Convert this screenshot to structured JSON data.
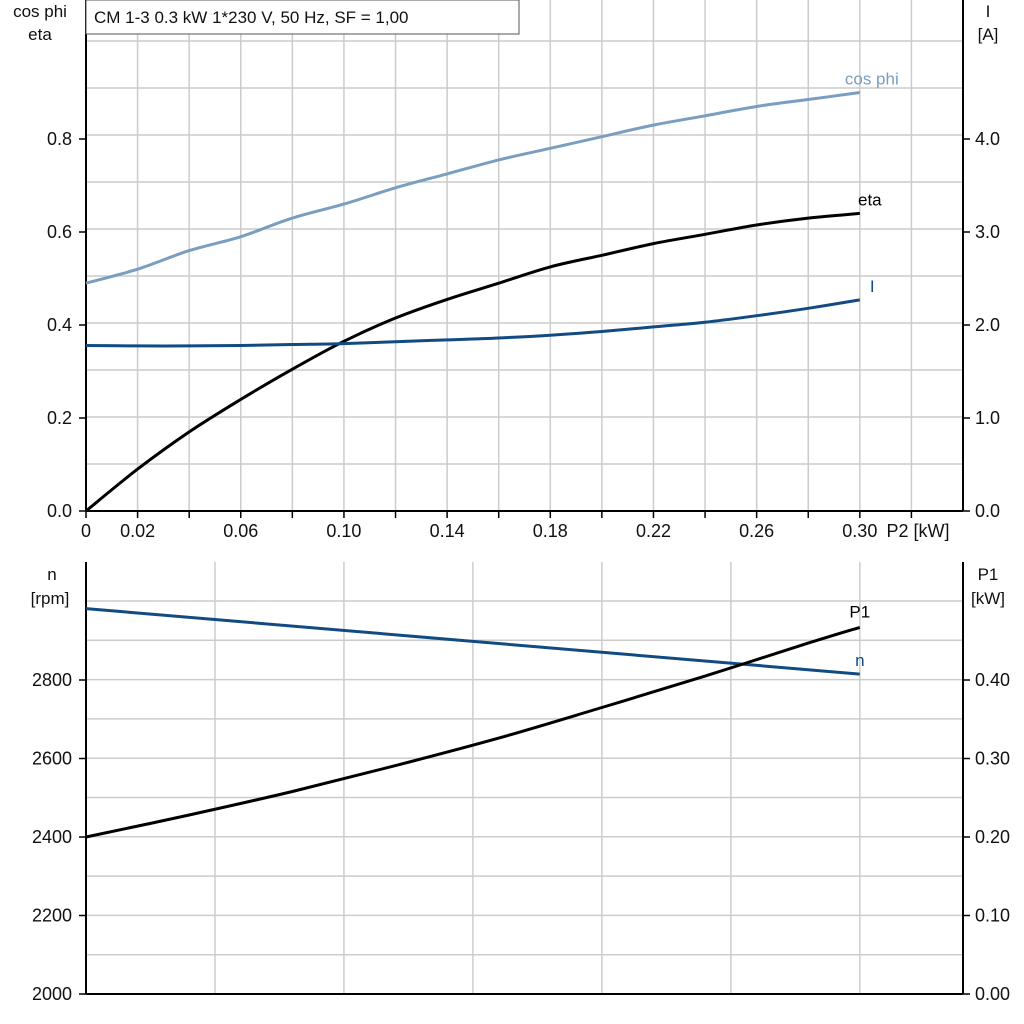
{
  "title": "CM 1-3   0.3 kW   1*230 V, 50 Hz, SF = 1,00",
  "colors": {
    "cos_phi": "#7a9ebf",
    "eta": "#000000",
    "I": "#124b82",
    "n": "#124b82",
    "P1": "#000000",
    "grid": "#cccccc"
  },
  "chart_data": [
    {
      "type": "line",
      "x_label": "P2 [kW]",
      "x_ticks": [
        "0",
        "0.02",
        "0.06",
        "0.10",
        "0.14",
        "0.18",
        "0.22",
        "0.26",
        "0.30"
      ],
      "xlim": [
        0,
        0.34
      ],
      "left_axis_label": [
        "cos phi",
        "eta"
      ],
      "left_ticks": [
        "0.0",
        "0.2",
        "0.4",
        "0.6",
        "0.8"
      ],
      "left_ylim": [
        0,
        1.0
      ],
      "right_axis_label": [
        "I",
        "[A]"
      ],
      "right_ticks": [
        "0.0",
        "1.0",
        "2.0",
        "3.0",
        "4.0"
      ],
      "right_ylim": [
        0,
        5.0
      ],
      "grid": true,
      "series": [
        {
          "name": "cos phi",
          "axis": "left",
          "color_key": "cos_phi",
          "x": [
            0,
            0.02,
            0.04,
            0.06,
            0.08,
            0.1,
            0.12,
            0.14,
            0.16,
            0.18,
            0.2,
            0.22,
            0.24,
            0.26,
            0.28,
            0.3
          ],
          "y": [
            0.49,
            0.52,
            0.56,
            0.59,
            0.63,
            0.66,
            0.695,
            0.725,
            0.755,
            0.78,
            0.805,
            0.83,
            0.85,
            0.87,
            0.885,
            0.9
          ]
        },
        {
          "name": "eta",
          "axis": "left",
          "color_key": "eta",
          "x": [
            0,
            0.02,
            0.04,
            0.06,
            0.08,
            0.1,
            0.12,
            0.14,
            0.16,
            0.18,
            0.2,
            0.22,
            0.24,
            0.26,
            0.28,
            0.3
          ],
          "y": [
            0.0,
            0.09,
            0.17,
            0.24,
            0.305,
            0.365,
            0.415,
            0.455,
            0.49,
            0.525,
            0.55,
            0.575,
            0.595,
            0.615,
            0.63,
            0.64
          ]
        },
        {
          "name": "I",
          "axis": "right",
          "color_key": "I",
          "x": [
            0,
            0.02,
            0.04,
            0.06,
            0.08,
            0.1,
            0.12,
            0.14,
            0.16,
            0.18,
            0.2,
            0.22,
            0.24,
            0.26,
            0.28,
            0.3
          ],
          "y": [
            1.78,
            1.775,
            1.775,
            1.78,
            1.79,
            1.8,
            1.82,
            1.84,
            1.86,
            1.89,
            1.93,
            1.98,
            2.03,
            2.1,
            2.18,
            2.27
          ]
        }
      ]
    },
    {
      "type": "line",
      "x_label": "",
      "xlim": [
        0,
        0.34
      ],
      "left_axis_label": [
        "n",
        "[rpm]"
      ],
      "left_ticks": [
        "2000",
        "2200",
        "2400",
        "2600",
        "2800"
      ],
      "left_ylim": [
        2000,
        3000
      ],
      "right_axis_label": [
        "P1",
        "[kW]"
      ],
      "right_ticks": [
        "0.00",
        "0.10",
        "0.20",
        "0.30",
        "0.40"
      ],
      "right_ylim": [
        0,
        0.5
      ],
      "grid": true,
      "series": [
        {
          "name": "n",
          "axis": "left",
          "color_key": "n",
          "x": [
            0,
            0.3
          ],
          "y": [
            2982,
            2815
          ]
        },
        {
          "name": "P1",
          "axis": "right",
          "color_key": "P1",
          "x": [
            0,
            0.04,
            0.08,
            0.12,
            0.16,
            0.2,
            0.24,
            0.28,
            0.3
          ],
          "y": [
            0.2,
            0.228,
            0.258,
            0.291,
            0.326,
            0.365,
            0.405,
            0.447,
            0.467
          ]
        }
      ]
    }
  ]
}
